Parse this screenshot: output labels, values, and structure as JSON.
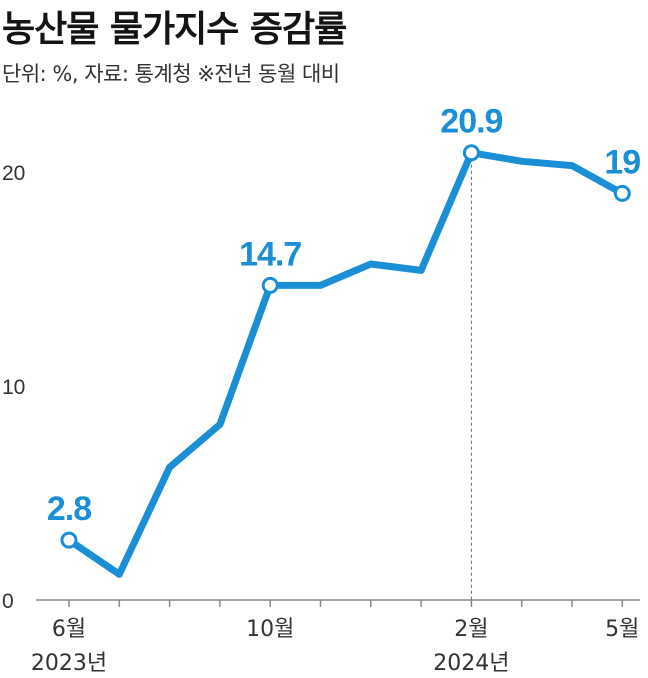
{
  "title": "농산물 물가지수 증감률",
  "subtitle": "단위: %, 자료: 통계청 ※전년 동월 대비",
  "colors": {
    "line": "#1a8fd6",
    "axis": "#888888",
    "text": "#333333"
  },
  "chart_data": {
    "type": "line",
    "title": "농산물 물가지수 증감률",
    "subtitle": "단위: %, 자료: 통계청 ※전년 동월 대비",
    "xlabel": "",
    "ylabel": "",
    "ylim": [
      0,
      21
    ],
    "yticks": [
      0,
      10,
      20
    ],
    "grid": false,
    "x": [
      "2023-06",
      "2023-07",
      "2023-08",
      "2023-09",
      "2023-10",
      "2023-11",
      "2023-12",
      "2024-01",
      "2024-02",
      "2024-03",
      "2024-04",
      "2024-05"
    ],
    "series": [
      {
        "values": [
          2.8,
          1.2,
          6.2,
          8.2,
          14.7,
          14.7,
          15.7,
          15.4,
          20.9,
          20.5,
          20.3,
          19.0
        ]
      }
    ],
    "x_tick_labels": [
      {
        "x": "2023-06",
        "month": "6월",
        "year": "2023년"
      },
      {
        "x": "2023-10",
        "month": "10월",
        "year": ""
      },
      {
        "x": "2024-02",
        "month": "2월",
        "year": "2024년"
      },
      {
        "x": "2024-05",
        "month": "5월",
        "year": ""
      }
    ],
    "data_labels": [
      {
        "x": "2023-06",
        "text": "2.8"
      },
      {
        "x": "2023-10",
        "text": "14.7"
      },
      {
        "x": "2024-02",
        "text": "20.9"
      },
      {
        "x": "2024-05",
        "text": "19"
      }
    ],
    "reference_line_x": "2024-02"
  }
}
